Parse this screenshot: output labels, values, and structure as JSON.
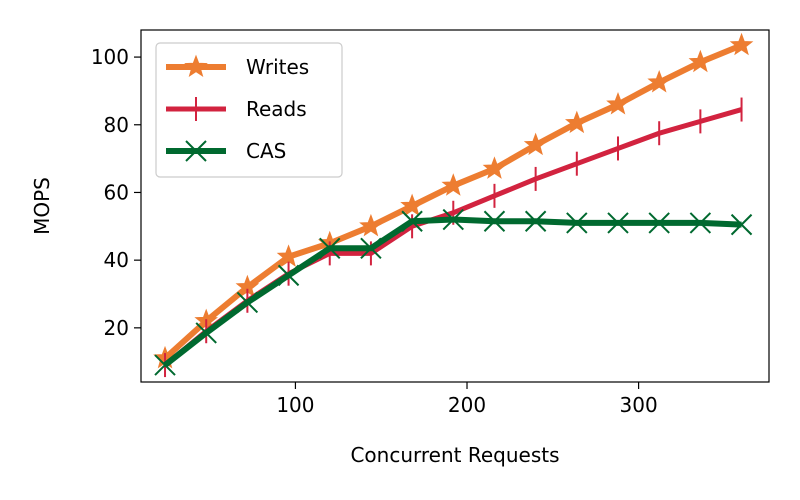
{
  "chart_data": {
    "type": "line",
    "title": "",
    "xlabel": "Concurrent Requests",
    "ylabel": "MOPS",
    "xlim": [
      10,
      376
    ],
    "ylim": [
      4,
      108
    ],
    "xticks": [
      100,
      200,
      300
    ],
    "yticks": [
      20,
      40,
      60,
      80,
      100
    ],
    "grid": false,
    "legend_position": "top-left",
    "x": [
      24,
      48,
      72,
      96,
      120,
      144,
      168,
      192,
      216,
      240,
      264,
      288,
      312,
      336,
      360
    ],
    "series": [
      {
        "name": "Writes",
        "color": "#ED7D31",
        "marker": "star",
        "values": [
          11,
          22,
          32,
          41,
          45,
          50,
          56,
          62,
          67,
          74,
          80.5,
          86,
          92.5,
          98.5,
          103.5
        ]
      },
      {
        "name": "Reads",
        "color": "#D2233F",
        "marker": "vline",
        "values": [
          9,
          19,
          28,
          36,
          42,
          42,
          50,
          54,
          59,
          64,
          68.5,
          73,
          77.5,
          81,
          84.5
        ]
      },
      {
        "name": "CAS",
        "color": "#00692F",
        "marker": "x",
        "values": [
          9,
          18.5,
          27.5,
          35.5,
          43.5,
          43.5,
          51.5,
          52,
          51.5,
          51.5,
          51,
          51,
          51,
          51,
          50.5
        ]
      }
    ]
  }
}
